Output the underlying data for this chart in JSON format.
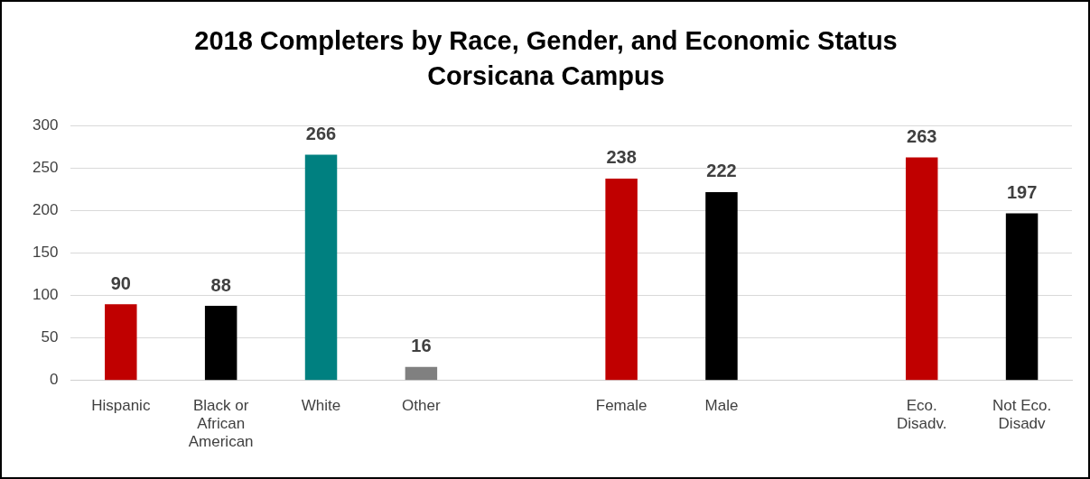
{
  "chart_data": {
    "type": "bar",
    "title": "2018 Completers by Race, Gender, and Economic Status",
    "subtitle": "Corsicana Campus",
    "categories": [
      "Hispanic",
      "Black or African American",
      "White",
      "Other",
      null,
      "Female",
      "Male",
      null,
      "Eco. Disadv.",
      "Not Eco. Disadv"
    ],
    "values": [
      90,
      88,
      266,
      16,
      null,
      238,
      222,
      null,
      263,
      197
    ],
    "colors": [
      "#c00000",
      "#000000",
      "#008080",
      "#808080",
      "#808080",
      "#c00000",
      "#000000",
      "#000000",
      "#c00000",
      "#000000"
    ],
    "ylim": [
      0,
      300
    ],
    "yticks": [
      0,
      50,
      100,
      150,
      200,
      250,
      300
    ],
    "grid": "y",
    "data_labels": true,
    "legend": false
  }
}
